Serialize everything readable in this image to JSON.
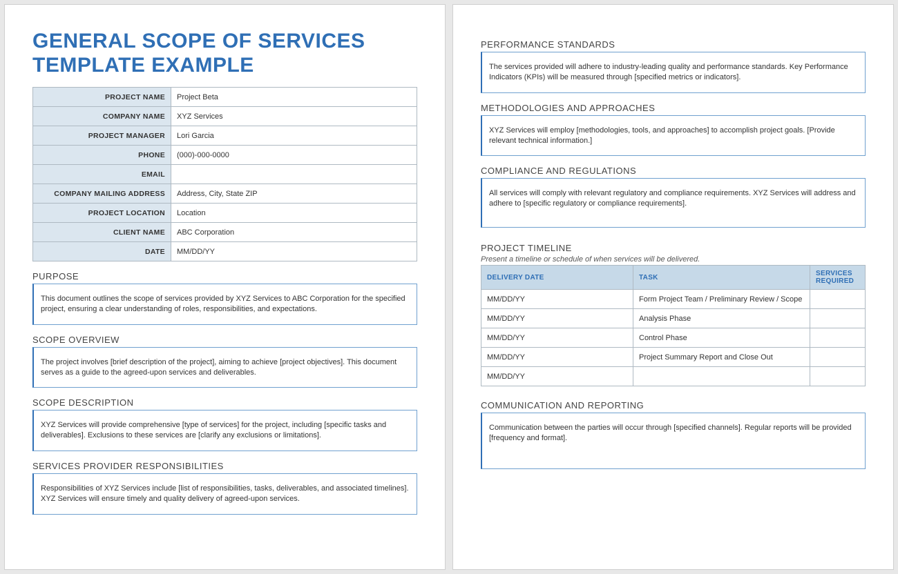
{
  "colors": {
    "accent_blue": "#2f6fb5",
    "header_bg": "#dbe6ef",
    "timeline_header_bg": "#c6d9e8",
    "border_gray": "#aeb9c2",
    "box_border_blue": "#6fa0cf",
    "page_bg": "#ffffff",
    "body_bg": "#e8e8e8"
  },
  "title": "GENERAL SCOPE OF SERVICES TEMPLATE EXAMPLE",
  "info": {
    "rows": [
      {
        "label": "PROJECT NAME",
        "value": "Project Beta"
      },
      {
        "label": "COMPANY NAME",
        "value": "XYZ Services"
      },
      {
        "label": "PROJECT MANAGER",
        "value": "Lori Garcia"
      },
      {
        "label": "PHONE",
        "value": "(000)-000-0000"
      },
      {
        "label": "EMAIL",
        "value": ""
      },
      {
        "label": "COMPANY MAILING ADDRESS",
        "value": "Address, City, State ZIP"
      },
      {
        "label": "PROJECT LOCATION",
        "value": "Location"
      },
      {
        "label": "CLIENT NAME",
        "value": "ABC Corporation"
      },
      {
        "label": "DATE",
        "value": "MM/DD/YY"
      }
    ]
  },
  "sections_left": [
    {
      "heading": "PURPOSE",
      "body": "This document outlines the scope of services provided by XYZ Services to ABC Corporation for the specified project, ensuring a clear understanding of roles, responsibilities, and expectations."
    },
    {
      "heading": "SCOPE OVERVIEW",
      "body": "The project involves [brief description of the project], aiming to achieve [project objectives]. This document serves as a guide to the agreed-upon services and deliverables."
    },
    {
      "heading": "SCOPE DESCRIPTION",
      "body": "XYZ Services will provide comprehensive [type of services] for the project, including [specific tasks and deliverables]. Exclusions to these services are [clarify any exclusions or limitations]."
    },
    {
      "heading": "SERVICES PROVIDER RESPONSIBILITIES",
      "body": "Responsibilities of XYZ Services include [list of responsibilities, tasks, deliverables, and associated timelines]. XYZ Services will ensure timely and quality delivery of agreed-upon services."
    }
  ],
  "sections_right_top": [
    {
      "heading": "PERFORMANCE STANDARDS",
      "body": "The services provided will adhere to industry-leading quality and performance standards. Key Performance Indicators (KPIs) will be measured through [specified metrics or indicators]."
    },
    {
      "heading": "METHODOLOGIES AND APPROACHES",
      "body": "XYZ Services will employ [methodologies, tools, and approaches] to accomplish project goals. [Provide relevant technical information.]"
    },
    {
      "heading": "COMPLIANCE AND REGULATIONS",
      "body": "All services will comply with relevant regulatory and compliance requirements. XYZ Services will address and adhere to [specific regulatory or compliance requirements]."
    }
  ],
  "timeline": {
    "heading": "PROJECT TIMELINE",
    "subheading": "Present a timeline or schedule of when services will be delivered.",
    "columns": [
      "DELIVERY DATE",
      "TASK",
      "SERVICES REQUIRED"
    ],
    "rows": [
      {
        "date": "MM/DD/YY",
        "task": "Form Project Team / Preliminary Review / Scope",
        "services": ""
      },
      {
        "date": "MM/DD/YY",
        "task": "Analysis Phase",
        "services": ""
      },
      {
        "date": "MM/DD/YY",
        "task": "Control Phase",
        "services": ""
      },
      {
        "date": "MM/DD/YY",
        "task": "Project Summary Report and Close Out",
        "services": ""
      },
      {
        "date": "MM/DD/YY",
        "task": "",
        "services": ""
      }
    ]
  },
  "sections_right_bottom": [
    {
      "heading": "COMMUNICATION AND REPORTING",
      "body": "Communication between the parties will occur through [specified channels]. Regular reports will be provided [frequency and format]."
    }
  ]
}
